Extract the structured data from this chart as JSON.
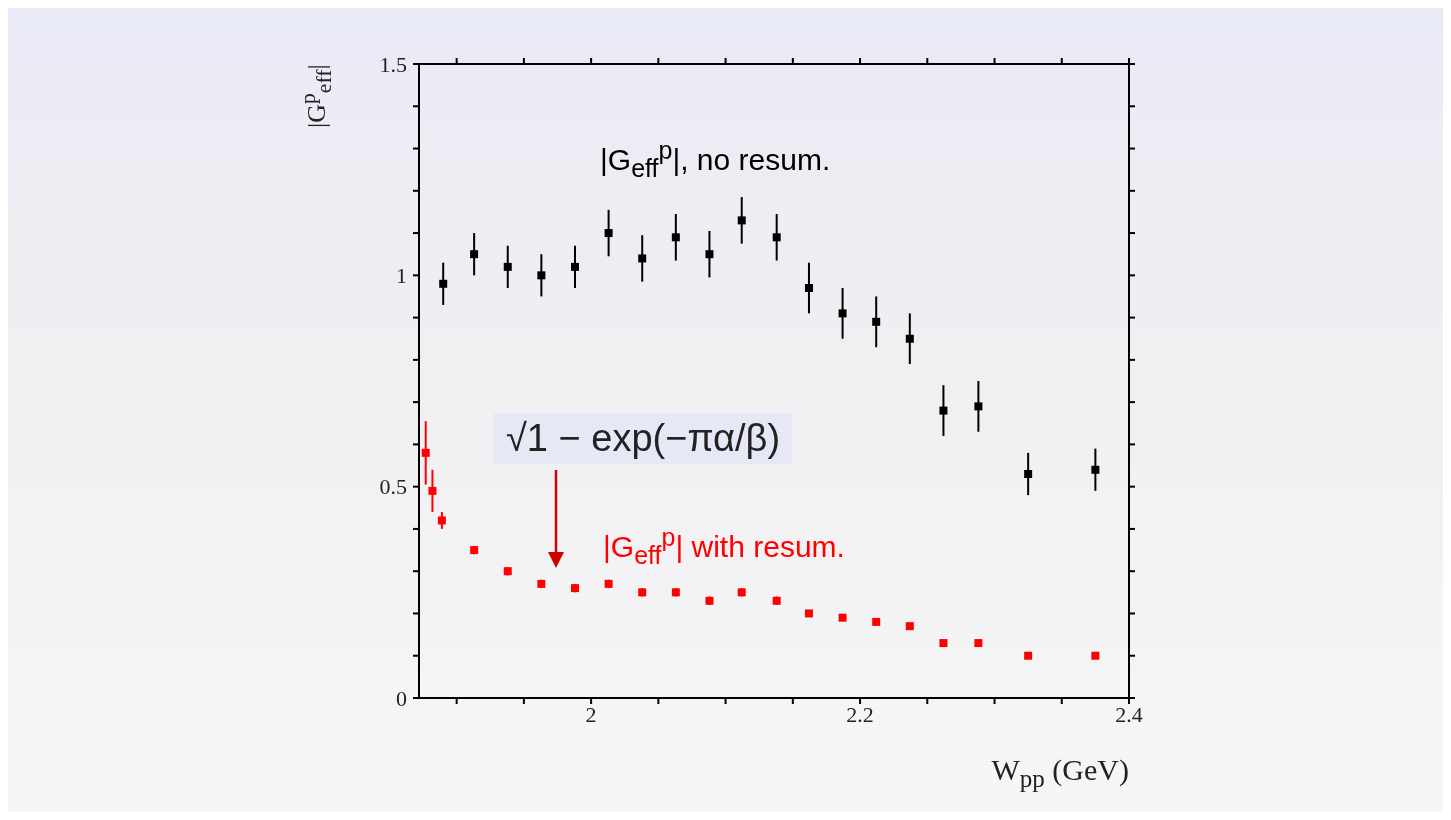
{
  "chart_data": {
    "type": "scatter",
    "xlabel": "W$_{pp}$ (GeV)",
    "ylabel": "|G$^{p}$$_{eff}$|",
    "xlim": [
      1.872,
      2.4
    ],
    "xticks": [
      {
        "value": 1.9,
        "label": null
      },
      {
        "value": 1.95,
        "label": null
      },
      2,
      {
        "value": 2.05,
        "label": null
      },
      {
        "value": 2.1,
        "label": null
      },
      {
        "value": 2.15,
        "label": null
      },
      2.2,
      {
        "value": 2.25,
        "label": null
      },
      {
        "value": 2.3,
        "label": null
      },
      {
        "value": 2.35,
        "label": null
      },
      2.4
    ],
    "ylim": [
      0,
      1.5
    ],
    "yticks": [
      0,
      {
        "value": 0.1,
        "label": null
      },
      {
        "value": 0.2,
        "label": null
      },
      {
        "value": 0.3,
        "label": null
      },
      {
        "value": 0.4,
        "label": null
      },
      0.5,
      {
        "value": 0.6,
        "label": null
      },
      {
        "value": 0.7,
        "label": null
      },
      {
        "value": 0.8,
        "label": null
      },
      {
        "value": 0.9,
        "label": null
      },
      1,
      {
        "value": 1.1,
        "label": null
      },
      {
        "value": 1.2,
        "label": null
      },
      {
        "value": 1.3,
        "label": null
      },
      {
        "value": 1.4,
        "label": null
      },
      1.5
    ],
    "marker": "square",
    "series": [
      {
        "name": "|G$_{eff}$$^{p}$|, no resum.",
        "color": "#000000",
        "x": [
          1.89,
          1.913,
          1.938,
          1.963,
          1.988,
          2.013,
          2.038,
          2.063,
          2.088,
          2.112,
          2.138,
          2.162,
          2.187,
          2.212,
          2.237,
          2.262,
          2.288,
          2.325,
          2.375
        ],
        "values": [
          0.98,
          1.05,
          1.02,
          1.0,
          1.02,
          1.1,
          1.04,
          1.09,
          1.05,
          1.13,
          1.09,
          0.97,
          0.91,
          0.89,
          0.85,
          0.68,
          0.69,
          0.53,
          0.54
        ],
        "errors": [
          0.05,
          0.05,
          0.05,
          0.05,
          0.05,
          0.055,
          0.055,
          0.055,
          0.055,
          0.055,
          0.055,
          0.06,
          0.06,
          0.06,
          0.06,
          0.06,
          0.06,
          0.05,
          0.05
        ]
      },
      {
        "name": "|G$_{eff}$$^{p}$| with resum.",
        "color": "#ff0000",
        "x": [
          1.877,
          1.882,
          1.889,
          1.913,
          1.938,
          1.963,
          1.988,
          2.013,
          2.038,
          2.063,
          2.088,
          2.112,
          2.138,
          2.162,
          2.187,
          2.212,
          2.237,
          2.262,
          2.288,
          2.325,
          2.375
        ],
        "values": [
          0.58,
          0.49,
          0.42,
          0.35,
          0.3,
          0.27,
          0.26,
          0.27,
          0.25,
          0.25,
          0.23,
          0.25,
          0.23,
          0.2,
          0.19,
          0.18,
          0.17,
          0.13,
          0.13,
          0.1,
          0.1
        ],
        "errors": [
          0.075,
          0.05,
          0.02,
          0.01,
          0.01,
          0.01,
          0.01,
          0.01,
          0.01,
          0.01,
          0.01,
          0.01,
          0.01,
          null,
          null,
          null,
          null,
          null,
          null,
          null,
          null
        ]
      }
    ],
    "annotations": [
      "√1 − exp(−πα/β)"
    ]
  }
}
